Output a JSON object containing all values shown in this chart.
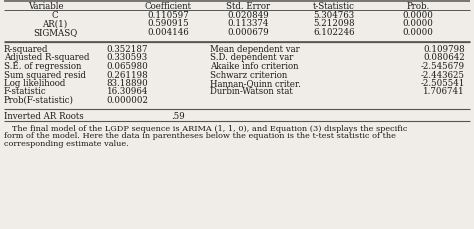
{
  "header": [
    "Variable",
    "Coefficient",
    "Std. Error",
    "t-Statistic",
    "Prob."
  ],
  "top_rows": [
    [
      "C",
      "0.110597",
      "0.020849",
      "5.304763",
      "0.0000"
    ],
    [
      "AR(1)",
      "0.590915",
      "0.113374",
      "5.212098",
      "0.0000"
    ],
    [
      "SIGMASQ",
      "0.004146",
      "0.000679",
      "6.102246",
      "0.0000"
    ]
  ],
  "left_stats": [
    [
      "R-squared",
      "0.352187"
    ],
    [
      "Adjusted R-squared",
      "0.330593"
    ],
    [
      "S.E. of regression",
      "0.065980"
    ],
    [
      "Sum squared resid",
      "0.261198"
    ],
    [
      "Log likelihood",
      "83.18890"
    ],
    [
      "F-statistic",
      "16.30964"
    ],
    [
      "Prob(F-statistic)",
      "0.000002"
    ]
  ],
  "right_stats": [
    [
      "Mean dependent var",
      "0.109798"
    ],
    [
      "S.D. dependent var",
      "0.080642"
    ],
    [
      "Akaike info criterion",
      "-2.545679"
    ],
    [
      "Schwarz criterion",
      "-2.443625"
    ],
    [
      "Hannan-Quinn criter.",
      "-2.505541"
    ],
    [
      "Durbin-Watson stat",
      "1.706741"
    ]
  ],
  "inverted_label": "Inverted AR Roots",
  "inverted_value": ".59",
  "footnote_lines": [
    "   The final model of the LGDP sequence is ARIMA (1, 1, 0), and Equation (3) displays the specific",
    "form of the model. Here the data in parentheses below the equation is the t-test statistic of the",
    "corresponding estimate value."
  ],
  "bg_color": "#f0ede8",
  "text_color": "#1a1a1a",
  "line_color": "#555555",
  "fontsize": 6.2,
  "footnote_fontsize": 5.9
}
